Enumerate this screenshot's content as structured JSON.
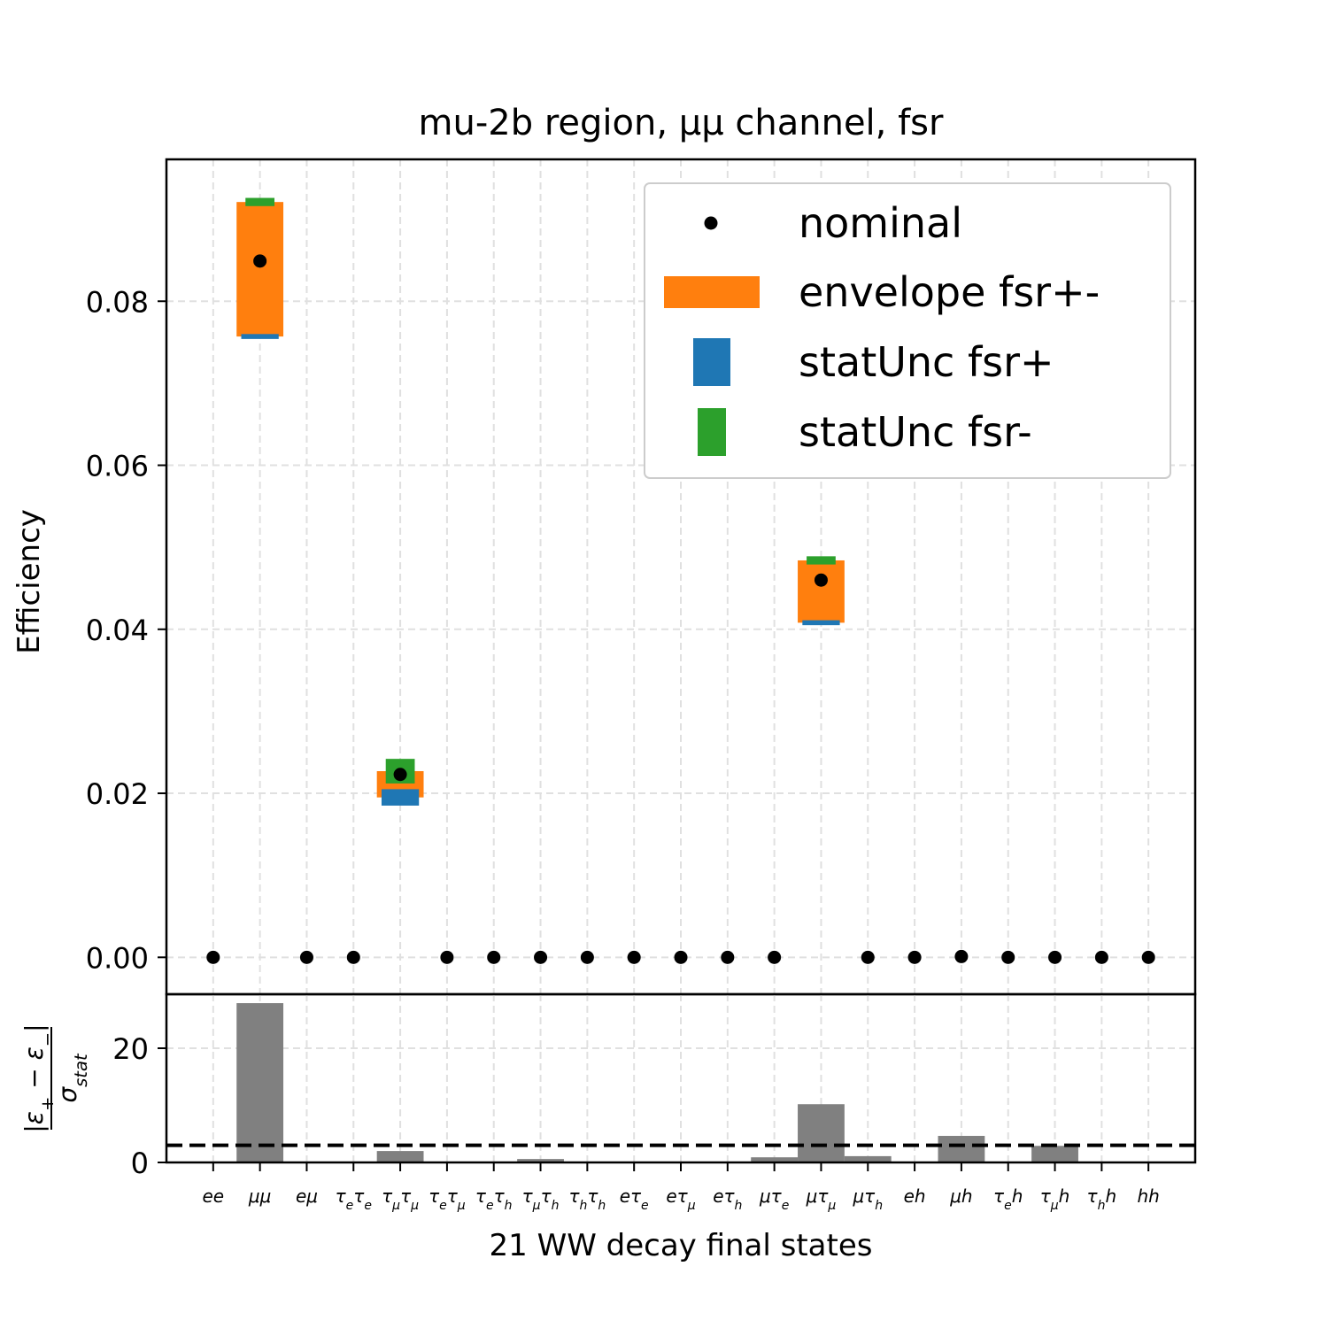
{
  "chart_data": [
    {
      "type": "range",
      "title": "mu-2b region, μμ channel, fsr",
      "ylabel": "Efficiency",
      "series": [
        {
          "name": "nominal",
          "color": "#000000",
          "values": [
            0,
            0.0849,
            0,
            0,
            0.0223,
            0,
            0,
            0,
            0,
            0,
            0,
            0,
            0,
            0.046,
            0,
            0,
            0.0001,
            0,
            0,
            0,
            0
          ]
        },
        {
          "name": "envelope fsr+-",
          "color": "#ff7f0e"
        },
        {
          "name": "statUnc fsr+",
          "color": "#1f77b4",
          "values": [
            0,
            0.0757,
            0,
            0,
            0.0195,
            0,
            0,
            0,
            0,
            0,
            0,
            0,
            0,
            0.0408,
            0,
            0,
            0,
            0,
            0,
            0,
            0
          ],
          "errors": [
            0,
            0.0003,
            0,
            0,
            0.001,
            0,
            0,
            0,
            0,
            0,
            0,
            0,
            0,
            0.0003,
            0,
            0,
            0,
            0,
            0,
            0,
            0
          ]
        },
        {
          "name": "statUnc fsr-",
          "color": "#2ca02c",
          "values": [
            0,
            0.0921,
            0,
            0,
            0.0227,
            0,
            0,
            0,
            0,
            0,
            0,
            0,
            0,
            0.0484,
            0,
            0,
            0,
            0,
            0,
            0,
            0
          ],
          "errors": [
            0,
            0.0005,
            0,
            0,
            0.0015,
            0,
            0,
            0,
            0,
            0,
            0,
            0,
            0,
            0.0005,
            0,
            0,
            0,
            0,
            0,
            0,
            0
          ]
        }
      ],
      "ylim": [
        -0.0045,
        0.0973
      ],
      "yticks": [
        {
          "value": 0,
          "label": "0.00"
        },
        {
          "value": 0.02,
          "label": "0.02"
        },
        {
          "value": 0.04,
          "label": "0.04"
        },
        {
          "value": 0.06,
          "label": "0.06"
        },
        {
          "value": 0.08,
          "label": "0.08"
        }
      ],
      "grid": true,
      "legend": "upper right"
    },
    {
      "type": "bar",
      "xlabel": "21 WW decay final states",
      "ylabel": {
        "numerator": "|ε_+ − ε_−|",
        "denominator": "σ_{stat}"
      },
      "categories": [
        "ee",
        "μμ",
        "eμ",
        "τ_eτ_e",
        "τ_μτ_μ",
        "τ_eτ_μ",
        "τ_eτ_h",
        "τ_μτ_h",
        "τ_hτ_h",
        "eτ_e",
        "eτ_μ",
        "eτ_h",
        "μτ_e",
        "μτ_μ",
        "μτ_h",
        "eh",
        "μh",
        "τ_eh",
        "τ_μh",
        "τ_hh",
        "hh"
      ],
      "values": [
        0,
        27.9,
        0,
        0,
        2.0,
        0,
        0,
        0.6,
        0,
        0,
        0,
        0,
        0.9,
        10.2,
        1.1,
        0,
        4.65,
        0,
        2.9,
        0,
        0
      ],
      "color": "#808080",
      "threshold": 3,
      "ylim": [
        0,
        29.46
      ],
      "yticks": [
        0,
        20
      ],
      "grid": true
    }
  ]
}
